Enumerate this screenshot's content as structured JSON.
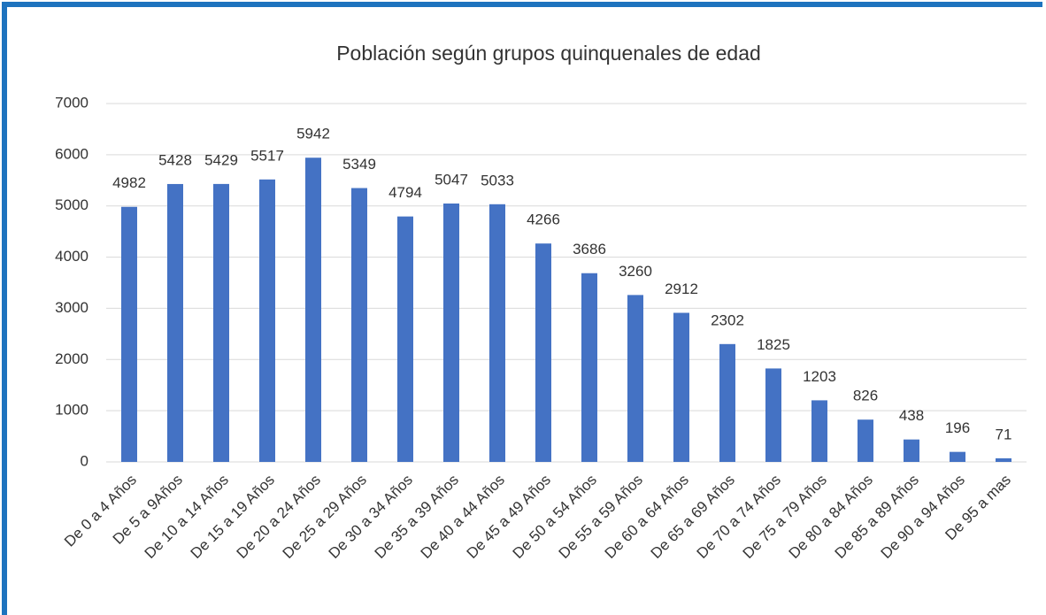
{
  "chart_data": {
    "type": "bar",
    "title": "Población según grupos quinquenales de edad",
    "categories": [
      "De 0 a 4 Años",
      "De 5 a 9Años",
      "De 10 a 14 Años",
      "De 15 a 19 Años",
      "De 20 a 24 Años",
      "De 25 a 29 Años",
      "De 30 a 34 Años",
      "De 35 a 39 Años",
      "De 40 a 44 Años",
      "De 45 a 49 Años",
      "De 50 a 54 Años",
      "De 55 a 59 Años",
      "De 60 a 64 Años",
      "De 65 a 69 Años",
      "De 70 a 74 Años",
      "De 75 a 79 Años",
      "De 80 a 84 Años",
      "De 85 a 89 Años",
      "De 90 a 94 Años",
      "De 95 a mas"
    ],
    "values": [
      4982,
      5428,
      5429,
      5517,
      5942,
      5349,
      4794,
      5047,
      5033,
      4266,
      3686,
      3260,
      2912,
      2302,
      1825,
      1203,
      826,
      438,
      196,
      71
    ],
    "color": "#4472c4",
    "ylim": [
      0,
      7000
    ],
    "yticks": [
      0,
      1000,
      2000,
      3000,
      4000,
      5000,
      6000,
      7000
    ],
    "grid": true
  }
}
